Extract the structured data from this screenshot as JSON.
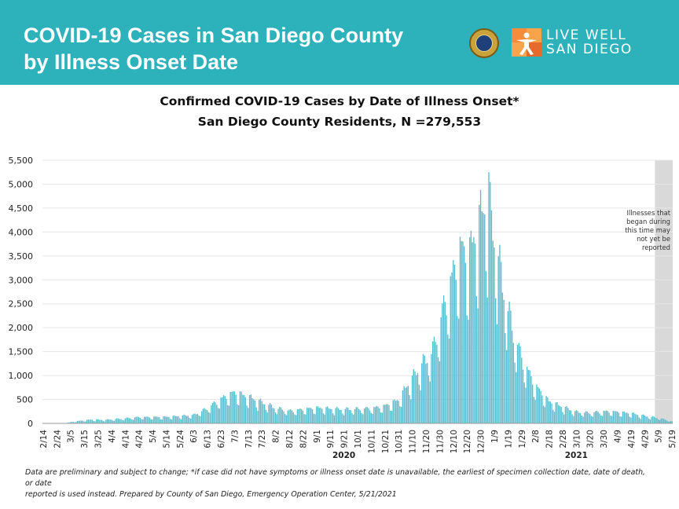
{
  "banner": {
    "title_line1": "COVID-19 Cases in San Diego County",
    "title_line2": "by Illness Onset Date",
    "logo_line1": "LIVE WELL",
    "logo_line2": "SAN DIEGO",
    "brand_color": "#2db2bc"
  },
  "chart_data": {
    "type": "bar",
    "title": "Confirmed COVID-19 Cases by Date of Illness Onset*",
    "subtitle": "San Diego County Residents, N =279,553",
    "xlabel": "",
    "ylabel": "",
    "ylim": [
      0,
      5500
    ],
    "y_ticks": [
      "0",
      "500",
      "1,000",
      "1,500",
      "2,000",
      "2,500",
      "3,000",
      "3,500",
      "4,000",
      "4,500",
      "5,000",
      "5,500"
    ],
    "x_ticks": [
      "2/14",
      "2/24",
      "3/5",
      "3/15",
      "3/25",
      "4/4",
      "4/14",
      "4/24",
      "5/4",
      "5/14",
      "5/24",
      "6/3",
      "6/13",
      "6/23",
      "7/3",
      "7/13",
      "7/23",
      "8/2",
      "8/12",
      "8/22",
      "9/1",
      "9/11",
      "9/21",
      "10/1",
      "10/11",
      "10/21",
      "10/31",
      "11/10",
      "11/20",
      "11/30",
      "12/10",
      "12/20",
      "12/30",
      "1/9",
      "1/19",
      "1/29",
      "2/8",
      "2/18",
      "2/28",
      "3/10",
      "3/20",
      "3/30",
      "4/9",
      "4/19",
      "4/29",
      "5/9",
      "5/19"
    ],
    "year_labels": [
      {
        "text": "2020",
        "at": "9/21"
      },
      {
        "text": "2021",
        "at": "3/10"
      }
    ],
    "x_start": "2020-02-14",
    "x_end": "2021-05-19",
    "grid": true,
    "bar_color": "#5bbccb",
    "shade_color": "#d9d9d9",
    "shaded_region": {
      "start": "2021-05-07",
      "end": "2021-05-19"
    },
    "shade_note": [
      "Illnesses that",
      "began during",
      "this time may",
      "not yet be",
      "reported"
    ],
    "series": [
      {
        "name": "",
        "values": [
          {
            "x": "2020-02-14",
            "y": 0
          },
          {
            "x": "2020-03-01",
            "y": 5
          },
          {
            "x": "2020-03-10",
            "y": 45
          },
          {
            "x": "2020-03-20",
            "y": 75
          },
          {
            "x": "2020-03-30",
            "y": 70
          },
          {
            "x": "2020-04-14",
            "y": 100
          },
          {
            "x": "2020-04-24",
            "y": 125
          },
          {
            "x": "2020-05-14",
            "y": 130
          },
          {
            "x": "2020-06-03",
            "y": 165
          },
          {
            "x": "2020-06-13",
            "y": 300
          },
          {
            "x": "2020-06-23",
            "y": 490
          },
          {
            "x": "2020-07-03",
            "y": 620
          },
          {
            "x": "2020-07-13",
            "y": 530
          },
          {
            "x": "2020-07-23",
            "y": 420
          },
          {
            "x": "2020-08-02",
            "y": 310
          },
          {
            "x": "2020-08-12",
            "y": 250
          },
          {
            "x": "2020-08-22",
            "y": 280
          },
          {
            "x": "2020-09-01",
            "y": 310
          },
          {
            "x": "2020-09-21",
            "y": 280
          },
          {
            "x": "2020-10-11",
            "y": 300
          },
          {
            "x": "2020-10-21",
            "y": 350
          },
          {
            "x": "2020-10-31",
            "y": 470
          },
          {
            "x": "2020-11-05",
            "y": 700
          },
          {
            "x": "2020-11-15",
            "y": 1100
          },
          {
            "x": "2020-11-25",
            "y": 1450
          },
          {
            "x": "2020-12-01",
            "y": 2100
          },
          {
            "x": "2020-12-08",
            "y": 2800
          },
          {
            "x": "2020-12-15",
            "y": 3450
          },
          {
            "x": "2020-12-22",
            "y": 3400
          },
          {
            "x": "2020-12-30",
            "y": 4100
          },
          {
            "x": "2021-01-04",
            "y": 4500
          },
          {
            "x": "2021-01-09",
            "y": 3700
          },
          {
            "x": "2021-01-15",
            "y": 2800
          },
          {
            "x": "2021-01-22",
            "y": 1900
          },
          {
            "x": "2021-01-29",
            "y": 1300
          },
          {
            "x": "2021-02-08",
            "y": 750
          },
          {
            "x": "2021-02-18",
            "y": 440
          },
          {
            "x": "2021-02-28",
            "y": 330
          },
          {
            "x": "2021-03-10",
            "y": 230
          },
          {
            "x": "2021-03-20",
            "y": 210
          },
          {
            "x": "2021-03-30",
            "y": 240
          },
          {
            "x": "2021-04-09",
            "y": 230
          },
          {
            "x": "2021-04-19",
            "y": 200
          },
          {
            "x": "2021-04-29",
            "y": 150
          },
          {
            "x": "2021-05-09",
            "y": 110
          },
          {
            "x": "2021-05-19",
            "y": 40
          }
        ],
        "peak": {
          "x": "2021-01-05",
          "y": 5250
        }
      }
    ]
  },
  "footnote": {
    "line1": "Data are preliminary and subject to change; *if case did not have symptoms or illness onset date is unavailable, the earliest of specimen collection date, date of death, or date",
    "line2": "reported is used instead. Prepared by County of San Diego, Emergency Operation Center, 5/21/2021"
  }
}
